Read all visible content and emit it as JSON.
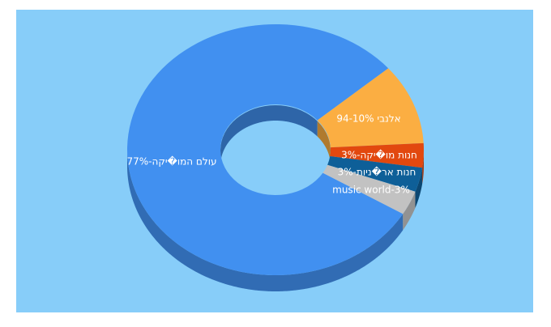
{
  "chart_data": {
    "type": "pie",
    "categories": [
      "עולם המו�יקה",
      "94 אלנבי",
      "חנות מו�יקה",
      "חנות אר�ניות",
      "music world"
    ],
    "values": [
      77,
      10,
      3,
      3,
      3
    ],
    "value_labels": [
      "עולם המו�יקה-77%",
      "94-10% אלנבי",
      "חנות מו�יקה-3%",
      "חנות אר�ניות-3%",
      "music world-3%"
    ],
    "colors": [
      "#4190f0",
      "#fbae42",
      "#e2480f",
      "#0e5f98",
      "#c2c2c2"
    ],
    "donut": true
  }
}
